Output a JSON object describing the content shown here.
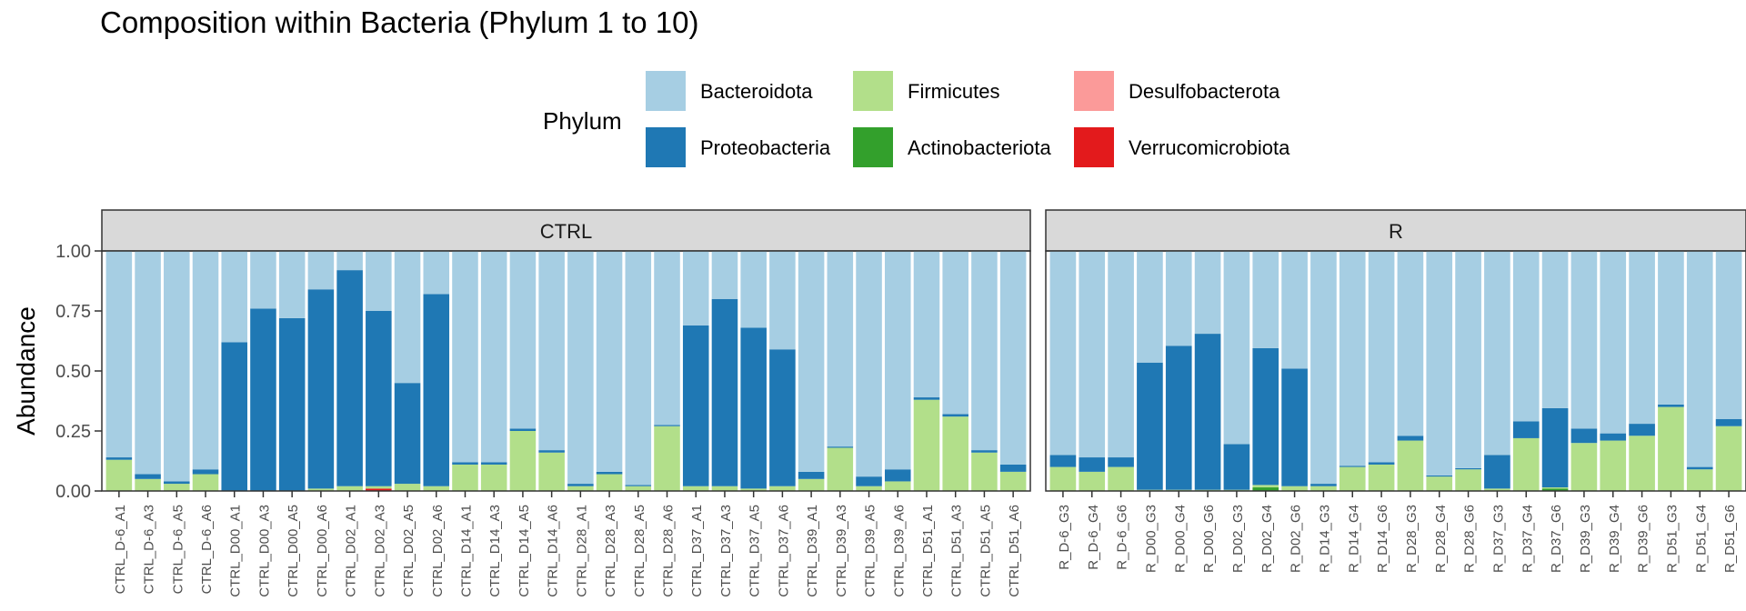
{
  "chart_data": {
    "type": "bar",
    "stacked": true,
    "title": "Composition within Bacteria (Phylum 1 to 10)",
    "ylabel": "Abundance",
    "xlabel": "",
    "ylim": [
      0,
      1
    ],
    "yticks": [
      "0.00",
      "0.25",
      "0.50",
      "0.75",
      "1.00"
    ],
    "grid": false,
    "legend": {
      "title": "Phylum",
      "position": "top",
      "entries": [
        {
          "name": "Bacteroidota",
          "color": "#a6cee3"
        },
        {
          "name": "Proteobacteria",
          "color": "#1f78b4"
        },
        {
          "name": "Firmicutes",
          "color": "#b2df8a"
        },
        {
          "name": "Actinobacteriota",
          "color": "#33a02c"
        },
        {
          "name": "Desulfobacterota",
          "color": "#fb9a99"
        },
        {
          "name": "Verrucomicrobiota",
          "color": "#e31a1c"
        }
      ]
    },
    "stack_order_bottom_to_top": [
      "Verrucomicrobiota",
      "Desulfobacterota",
      "Actinobacteriota",
      "Firmicutes",
      "Proteobacteria",
      "Bacteroidota"
    ],
    "panels": [
      {
        "name": "CTRL",
        "categories": [
          "CTRL_D-6_A1",
          "CTRL_D-6_A3",
          "CTRL_D-6_A5",
          "CTRL_D-6_A6",
          "CTRL_D00_A1",
          "CTRL_D00_A3",
          "CTRL_D00_A5",
          "CTRL_D00_A6",
          "CTRL_D02_A1",
          "CTRL_D02_A3",
          "CTRL_D02_A5",
          "CTRL_D02_A6",
          "CTRL_D14_A1",
          "CTRL_D14_A3",
          "CTRL_D14_A5",
          "CTRL_D14_A6",
          "CTRL_D28_A1",
          "CTRL_D28_A3",
          "CTRL_D28_A5",
          "CTRL_D28_A6",
          "CTRL_D37_A1",
          "CTRL_D37_A3",
          "CTRL_D37_A5",
          "CTRL_D37_A6",
          "CTRL_D39_A1",
          "CTRL_D39_A3",
          "CTRL_D39_A5",
          "CTRL_D39_A6",
          "CTRL_D51_A1",
          "CTRL_D51_A3",
          "CTRL_D51_A5",
          "CTRL_D51_A6"
        ],
        "series": [
          {
            "name": "Verrucomicrobiota",
            "values": [
              0,
              0,
              0,
              0,
              0,
              0,
              0,
              0,
              0,
              0.01,
              0,
              0,
              0,
              0,
              0,
              0,
              0,
              0,
              0,
              0,
              0,
              0,
              0,
              0,
              0,
              0,
              0,
              0,
              0,
              0,
              0,
              0
            ]
          },
          {
            "name": "Desulfobacterota",
            "values": [
              0,
              0,
              0,
              0,
              0,
              0,
              0,
              0,
              0,
              0,
              0,
              0,
              0,
              0,
              0,
              0,
              0,
              0,
              0,
              0,
              0,
              0,
              0,
              0,
              0,
              0,
              0,
              0,
              0,
              0,
              0,
              0
            ]
          },
          {
            "name": "Actinobacteriota",
            "values": [
              0,
              0,
              0,
              0,
              0,
              0,
              0,
              0,
              0,
              0,
              0,
              0,
              0,
              0,
              0,
              0,
              0,
              0,
              0,
              0,
              0,
              0,
              0,
              0,
              0,
              0,
              0,
              0,
              0,
              0,
              0,
              0
            ]
          },
          {
            "name": "Firmicutes",
            "values": [
              0.13,
              0.05,
              0.03,
              0.07,
              0,
              0,
              0,
              0.01,
              0.02,
              0.01,
              0.03,
              0.02,
              0.11,
              0.11,
              0.25,
              0.16,
              0.02,
              0.07,
              0.02,
              0.27,
              0.02,
              0.02,
              0.01,
              0.02,
              0.05,
              0.18,
              0.02,
              0.04,
              0.38,
              0.31,
              0.16,
              0.08
            ]
          },
          {
            "name": "Proteobacteria",
            "values": [
              0.01,
              0.02,
              0.01,
              0.02,
              0.62,
              0.76,
              0.72,
              0.83,
              0.9,
              0.73,
              0.42,
              0.8,
              0.01,
              0.01,
              0.01,
              0.01,
              0.01,
              0.01,
              0.005,
              0.005,
              0.67,
              0.78,
              0.67,
              0.57,
              0.03,
              0.005,
              0.04,
              0.05,
              0.01,
              0.01,
              0.01,
              0.03
            ]
          },
          {
            "name": "Bacteroidota",
            "values": [
              0.86,
              0.93,
              0.96,
              0.91,
              0.38,
              0.24,
              0.28,
              0.16,
              0.08,
              0.25,
              0.55,
              0.18,
              0.88,
              0.88,
              0.74,
              0.83,
              0.97,
              0.92,
              0.975,
              0.725,
              0.31,
              0.2,
              0.32,
              0.41,
              0.92,
              0.815,
              0.94,
              0.91,
              0.61,
              0.68,
              0.83,
              0.89
            ]
          }
        ]
      },
      {
        "name": "R",
        "categories": [
          "R_D-6_G3",
          "R_D-6_G4",
          "R_D-6_G6",
          "R_D00_G3",
          "R_D00_G4",
          "R_D00_G6",
          "R_D02_G3",
          "R_D02_G4",
          "R_D02_G6",
          "R_D14_G3",
          "R_D14_G4",
          "R_D14_G6",
          "R_D28_G3",
          "R_D28_G4",
          "R_D28_G6",
          "R_D37_G3",
          "R_D37_G4",
          "R_D37_G6",
          "R_D39_G3",
          "R_D39_G4",
          "R_D39_G6",
          "R_D51_G3",
          "R_D51_G4",
          "R_D51_G6"
        ],
        "series": [
          {
            "name": "Verrucomicrobiota",
            "values": [
              0,
              0,
              0,
              0,
              0,
              0,
              0,
              0,
              0,
              0,
              0,
              0,
              0,
              0,
              0,
              0,
              0,
              0,
              0,
              0,
              0,
              0,
              0,
              0
            ]
          },
          {
            "name": "Desulfobacterota",
            "values": [
              0,
              0,
              0,
              0,
              0,
              0,
              0,
              0,
              0,
              0,
              0,
              0,
              0,
              0,
              0,
              0,
              0,
              0,
              0,
              0,
              0,
              0,
              0,
              0
            ]
          },
          {
            "name": "Actinobacteriota",
            "values": [
              0,
              0,
              0,
              0,
              0,
              0,
              0,
              0.015,
              0,
              0,
              0,
              0,
              0,
              0,
              0,
              0,
              0,
              0.01,
              0,
              0,
              0,
              0,
              0,
              0
            ]
          },
          {
            "name": "Firmicutes",
            "values": [
              0.1,
              0.08,
              0.1,
              0.005,
              0.005,
              0.005,
              0.005,
              0.01,
              0.02,
              0.02,
              0.1,
              0.11,
              0.21,
              0.06,
              0.09,
              0.01,
              0.22,
              0.005,
              0.2,
              0.21,
              0.23,
              0.35,
              0.09,
              0.27
            ]
          },
          {
            "name": "Proteobacteria",
            "values": [
              0.05,
              0.06,
              0.04,
              0.53,
              0.6,
              0.65,
              0.19,
              0.57,
              0.49,
              0.01,
              0.005,
              0.01,
              0.02,
              0.005,
              0.005,
              0.14,
              0.07,
              0.33,
              0.06,
              0.03,
              0.05,
              0.01,
              0.01,
              0.03
            ]
          },
          {
            "name": "Bacteroidota",
            "values": [
              0.85,
              0.86,
              0.86,
              0.465,
              0.395,
              0.345,
              0.805,
              0.405,
              0.49,
              0.97,
              0.895,
              0.88,
              0.77,
              0.935,
              0.905,
              0.85,
              0.71,
              0.655,
              0.74,
              0.76,
              0.72,
              0.64,
              0.9,
              0.7
            ]
          }
        ]
      }
    ]
  }
}
